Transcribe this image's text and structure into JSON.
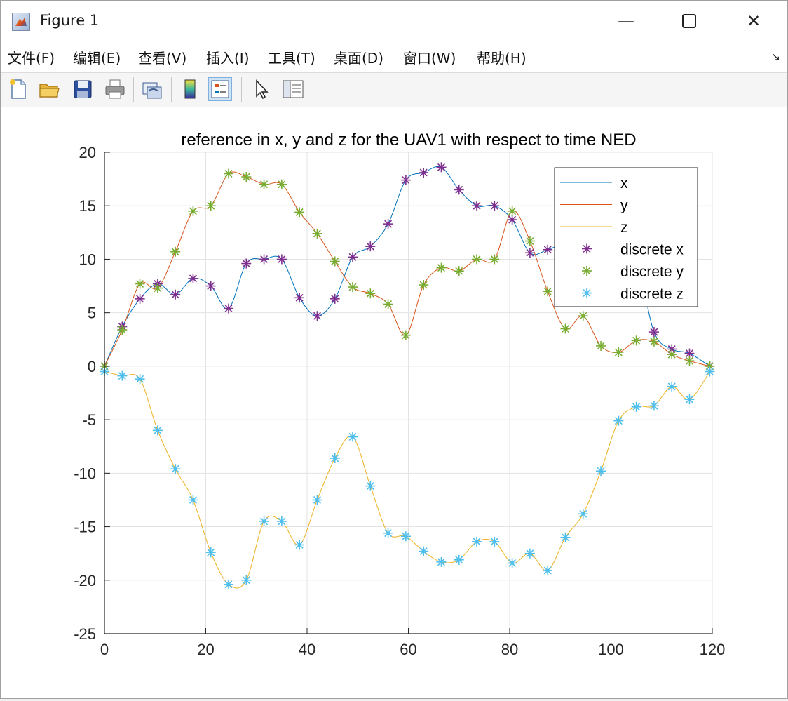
{
  "window": {
    "title": "Figure 1",
    "minimize_glyph": "—",
    "maximize_glyph": "☐",
    "close_glyph": "✕"
  },
  "menu": {
    "items": [
      "文件(F)",
      "编辑(E)",
      "查看(V)",
      "插入(I)",
      "工具(T)",
      "桌面(D)",
      "窗口(W)",
      "帮助(H)"
    ],
    "overflow_glyph": "↘"
  },
  "toolbar": {
    "icons": [
      "new-figure-icon",
      "open-file-icon",
      "save-icon",
      "print-icon",
      "link-plot-icon",
      "colorbar-icon",
      "legend-icon",
      "pointer-icon",
      "property-editor-icon"
    ]
  },
  "colors": {
    "x": "#0072bd",
    "y": "#d95319",
    "z": "#edb120",
    "discrete_x": "#7e2f8e",
    "discrete_y": "#77ac30",
    "discrete_z": "#4dbeee"
  },
  "chart_data": {
    "type": "line",
    "title": "reference in x, y and z for the UAV1 with respect to time NED",
    "xlabel": "",
    "ylabel": "",
    "xlim": [
      0,
      120
    ],
    "ylim": [
      -25,
      20
    ],
    "xticks": [
      "0",
      "20",
      "40",
      "60",
      "80",
      "100",
      "120"
    ],
    "yticks": [
      "20",
      "15",
      "10",
      "5",
      "0",
      "-5",
      "-10",
      "-15",
      "-20",
      "-25"
    ],
    "grid": true,
    "legend_position": "top-right",
    "x": [
      0,
      3.5,
      7,
      10.5,
      14,
      17.5,
      21,
      24.5,
      28,
      31.5,
      35,
      38.5,
      42,
      45.5,
      49,
      52.5,
      56,
      59.5,
      63,
      66.5,
      70,
      73.5,
      77,
      80.5,
      84,
      87.5,
      91,
      94.5,
      98,
      101.5,
      105,
      108.5,
      112,
      115.5,
      119.5
    ],
    "series": [
      {
        "name": "x",
        "style": "line",
        "values": [
          0,
          3.7,
          6.3,
          7.7,
          6.7,
          8.2,
          7.5,
          5.4,
          9.6,
          10.0,
          10.0,
          6.4,
          4.7,
          6.3,
          10.2,
          11.2,
          13.3,
          17.4,
          18.1,
          18.6,
          16.5,
          15.0,
          15.0,
          13.7,
          10.6,
          10.9,
          11.5,
          11.3,
          11.0,
          10.5,
          10.0,
          3.2,
          1.6,
          1.2,
          0
        ]
      },
      {
        "name": "y",
        "style": "line",
        "values": [
          0,
          3.4,
          7.7,
          7.3,
          10.7,
          14.5,
          15.0,
          18.0,
          17.7,
          17.0,
          17.0,
          14.4,
          12.4,
          9.8,
          7.4,
          6.8,
          5.8,
          2.9,
          7.6,
          9.2,
          8.9,
          10.0,
          10.0,
          14.5,
          11.7,
          7.0,
          3.5,
          4.7,
          1.9,
          1.3,
          2.4,
          2.3,
          1.1,
          0.5,
          0
        ]
      },
      {
        "name": "z",
        "style": "line",
        "values": [
          -0.5,
          -0.9,
          -1.2,
          -6.0,
          -9.6,
          -12.5,
          -17.4,
          -20.4,
          -20.0,
          -14.5,
          -14.5,
          -16.7,
          -12.5,
          -8.6,
          -6.6,
          -11.2,
          -15.6,
          -15.9,
          -17.3,
          -18.3,
          -18.1,
          -16.4,
          -16.4,
          -18.4,
          -17.5,
          -19.1,
          -16.0,
          -13.8,
          -9.8,
          -5.1,
          -3.8,
          -3.7,
          -1.9,
          -3.1,
          -0.5
        ]
      },
      {
        "name": "discrete x",
        "style": "marker",
        "values": [
          0,
          3.7,
          6.3,
          7.7,
          6.7,
          8.2,
          7.5,
          5.4,
          9.6,
          10.0,
          10.0,
          6.4,
          4.7,
          6.3,
          10.2,
          11.2,
          13.3,
          17.4,
          18.1,
          18.6,
          16.5,
          15.0,
          15.0,
          13.7,
          10.6,
          10.9,
          11.5,
          11.3,
          11.0,
          10.5,
          10.0,
          3.2,
          1.6,
          1.2,
          0
        ]
      },
      {
        "name": "discrete y",
        "style": "marker",
        "values": [
          0,
          3.4,
          7.7,
          7.3,
          10.7,
          14.5,
          15.0,
          18.0,
          17.7,
          17.0,
          17.0,
          14.4,
          12.4,
          9.8,
          7.4,
          6.8,
          5.8,
          2.9,
          7.6,
          9.2,
          8.9,
          10.0,
          10.0,
          14.5,
          11.7,
          7.0,
          3.5,
          4.7,
          1.9,
          1.3,
          2.4,
          2.3,
          1.1,
          0.5,
          0
        ]
      },
      {
        "name": "discrete z",
        "style": "marker",
        "values": [
          -0.5,
          -0.9,
          -1.2,
          -6.0,
          -9.6,
          -12.5,
          -17.4,
          -20.4,
          -20.0,
          -14.5,
          -14.5,
          -16.7,
          -12.5,
          -8.6,
          -6.6,
          -11.2,
          -15.6,
          -15.9,
          -17.3,
          -18.3,
          -18.1,
          -16.4,
          -16.4,
          -18.4,
          -17.5,
          -19.1,
          -16.0,
          -13.8,
          -9.8,
          -5.1,
          -3.8,
          -3.7,
          -1.9,
          -3.1,
          -0.5
        ]
      }
    ]
  }
}
